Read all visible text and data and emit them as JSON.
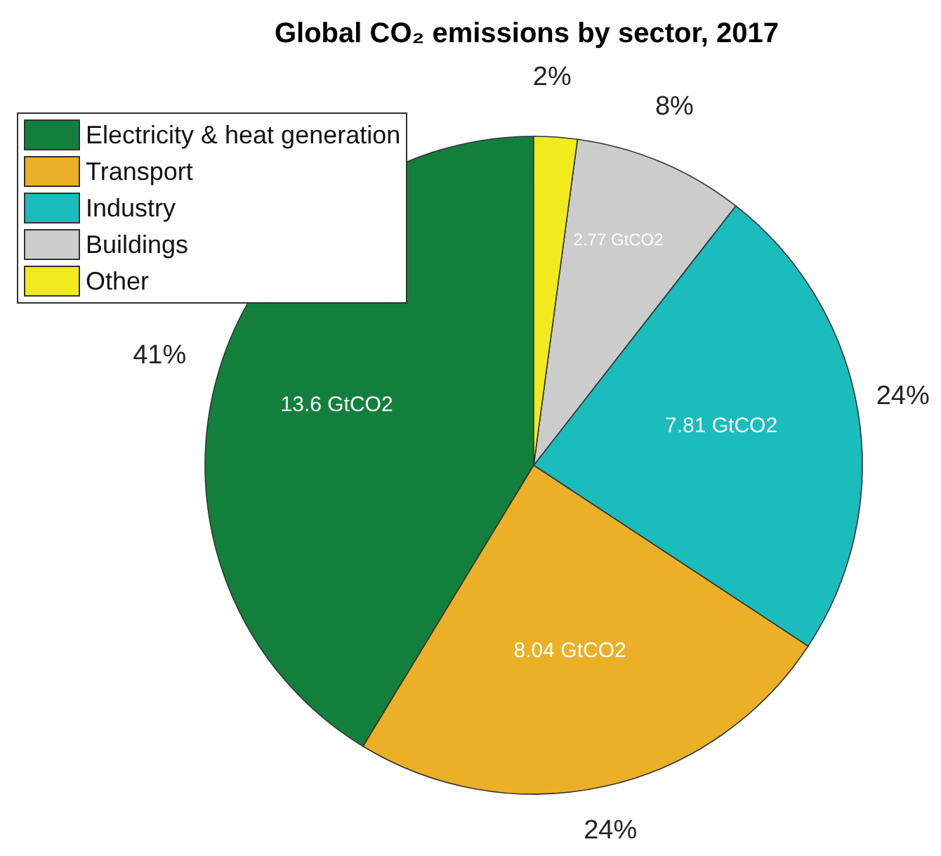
{
  "chart_data": {
    "type": "pie",
    "title": "Global CO₂ emissions by sector, 2017",
    "categories": [
      "Electricity & heat generation",
      "Transport",
      "Industry",
      "Buildings",
      "Other"
    ],
    "values": [
      13.6,
      8.04,
      7.81,
      2.77,
      0.7
    ],
    "colors": [
      "#12803c",
      "#ebb027",
      "#1bbcbc",
      "#cccccc",
      "#f2ea1c"
    ],
    "value_labels": [
      "13.6 GtCO2",
      "8.04 GtCO2",
      "7.81 GtCO2",
      "2.77 GtCO2",
      null
    ],
    "annotations": [
      "41%",
      "24%",
      "24%",
      "8%",
      "2%"
    ],
    "legend": "top left"
  }
}
